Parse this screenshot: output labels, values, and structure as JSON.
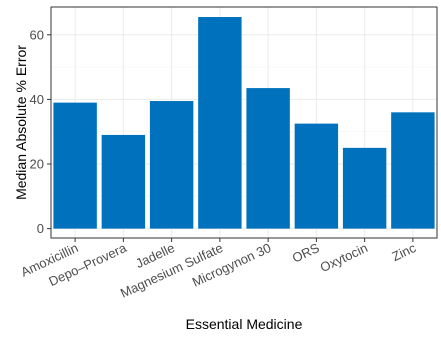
{
  "chart_data": {
    "type": "bar",
    "title": "",
    "xlabel": "Essential Medicine",
    "ylabel": "Median Absolute % Error",
    "categories": [
      "Amoxicillin",
      "Depo–Provera",
      "Jadelle",
      "Magnesium Sulfate",
      "Microgynon 30",
      "ORS",
      "Oxytocin",
      "Zinc"
    ],
    "values": [
      39,
      29,
      39.5,
      65.5,
      43.5,
      32.5,
      25,
      36
    ],
    "ylim": [
      -2.9,
      68.6
    ],
    "yticks": [
      0,
      20,
      40,
      60
    ],
    "grid": true,
    "legend": "none",
    "colors": {
      "bar": "#0072BD",
      "panel_border": "#333333",
      "grid_major": "#EBEBEB",
      "grid_minor": "#F5F5F5",
      "axis_text": "#4D4D4D"
    }
  }
}
